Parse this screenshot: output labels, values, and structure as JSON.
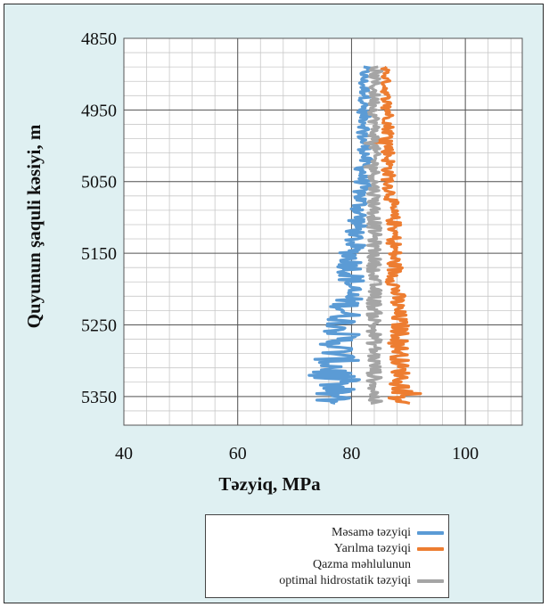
{
  "chart_data": {
    "type": "line",
    "title": "",
    "xlabel": "Təzyiq, MPa",
    "ylabel": "Quyunun şaquli kəsiyi, m",
    "xlim": [
      40,
      110
    ],
    "ylim": [
      4850,
      5390
    ],
    "y_inverted": true,
    "x_ticks": [
      "40",
      "60",
      "80",
      "100"
    ],
    "y_ticks": [
      "4850",
      "4950",
      "5050",
      "5150",
      "5250",
      "5350"
    ],
    "grid": true,
    "legend_position": "bottom-center",
    "series": [
      {
        "name": "Məsamə təzyiqi",
        "color": "#5b9bd5",
        "depth": [
          4890,
          4910,
          4930,
          4950,
          4970,
          4990,
          5010,
          5030,
          5050,
          5070,
          5090,
          5110,
          5130,
          5150,
          5170,
          5190,
          5210,
          5230,
          5250,
          5270,
          5290,
          5310,
          5330,
          5345,
          5360
        ],
        "values": [
          82.5,
          82.0,
          82.5,
          82.0,
          82.5,
          82.0,
          82.5,
          82.0,
          82.0,
          81.5,
          81.5,
          81.0,
          80.5,
          80.0,
          80.0,
          80.0,
          79.5,
          79.0,
          78.5,
          78.0,
          77.5,
          77.0,
          76.5,
          76.5,
          77.0
        ],
        "amplitude": [
          1.0,
          1.0,
          1.0,
          1.0,
          1.2,
          1.2,
          1.2,
          1.5,
          1.5,
          1.5,
          1.8,
          1.8,
          2.0,
          2.2,
          2.5,
          2.5,
          2.5,
          3.0,
          3.0,
          3.5,
          3.5,
          4.5,
          5.0,
          4.0,
          3.0
        ]
      },
      {
        "name": "Yarılma təzyiqi",
        "color": "#ed7d31",
        "depth": [
          4890,
          4910,
          4930,
          4950,
          4970,
          4990,
          5010,
          5030,
          5050,
          5070,
          5090,
          5110,
          5130,
          5150,
          5170,
          5190,
          5210,
          5230,
          5250,
          5270,
          5290,
          5310,
          5330,
          5345,
          5360
        ],
        "values": [
          86.0,
          86.0,
          86.0,
          86.5,
          86.5,
          86.5,
          86.5,
          86.5,
          86.5,
          87.0,
          87.0,
          87.5,
          87.5,
          87.5,
          87.5,
          87.5,
          88.0,
          88.0,
          88.5,
          88.5,
          88.5,
          88.5,
          89.0,
          89.0,
          89.0
        ],
        "amplitude": [
          0.8,
          0.8,
          0.8,
          1.0,
          1.0,
          1.2,
          1.2,
          1.2,
          1.2,
          1.2,
          1.2,
          1.3,
          1.3,
          1.4,
          1.4,
          1.4,
          1.5,
          1.5,
          1.6,
          1.6,
          1.6,
          1.6,
          1.8,
          1.8,
          1.8
        ]
      },
      {
        "name": "Qazma məhlulunun optimal hidrostatik təzyiqi",
        "color": "#a5a5a5",
        "depth": [
          4890,
          4910,
          4930,
          4950,
          4970,
          4990,
          5010,
          5030,
          5050,
          5070,
          5090,
          5110,
          5130,
          5150,
          5170,
          5190,
          5210,
          5230,
          5250,
          5270,
          5290,
          5310,
          5330,
          5345,
          5360
        ],
        "values": [
          84.0,
          84.0,
          84.0,
          84.0,
          84.0,
          84.0,
          84.0,
          84.0,
          84.0,
          84.0,
          84.0,
          84.0,
          84.0,
          84.0,
          84.0,
          84.0,
          84.0,
          84.0,
          84.0,
          84.0,
          84.0,
          84.0,
          84.0,
          84.0,
          84.0
        ],
        "amplitude": [
          1.0,
          1.0,
          1.0,
          1.0,
          1.0,
          1.0,
          1.0,
          1.0,
          1.0,
          1.2,
          1.2,
          1.2,
          1.2,
          1.2,
          1.2,
          1.2,
          1.3,
          1.3,
          1.3,
          1.3,
          1.3,
          1.3,
          1.3,
          1.3,
          1.3
        ]
      }
    ]
  },
  "legend": {
    "items": [
      {
        "lines": [
          "Məsamə təzyiqi"
        ],
        "color": "#5b9bd5"
      },
      {
        "lines": [
          "Yarılma təzyiqi"
        ],
        "color": "#ed7d31"
      },
      {
        "lines": [
          "Qazma məhlulunun",
          "optimal hidrostatik təzyiqi"
        ],
        "color": "#a5a5a5"
      }
    ]
  }
}
